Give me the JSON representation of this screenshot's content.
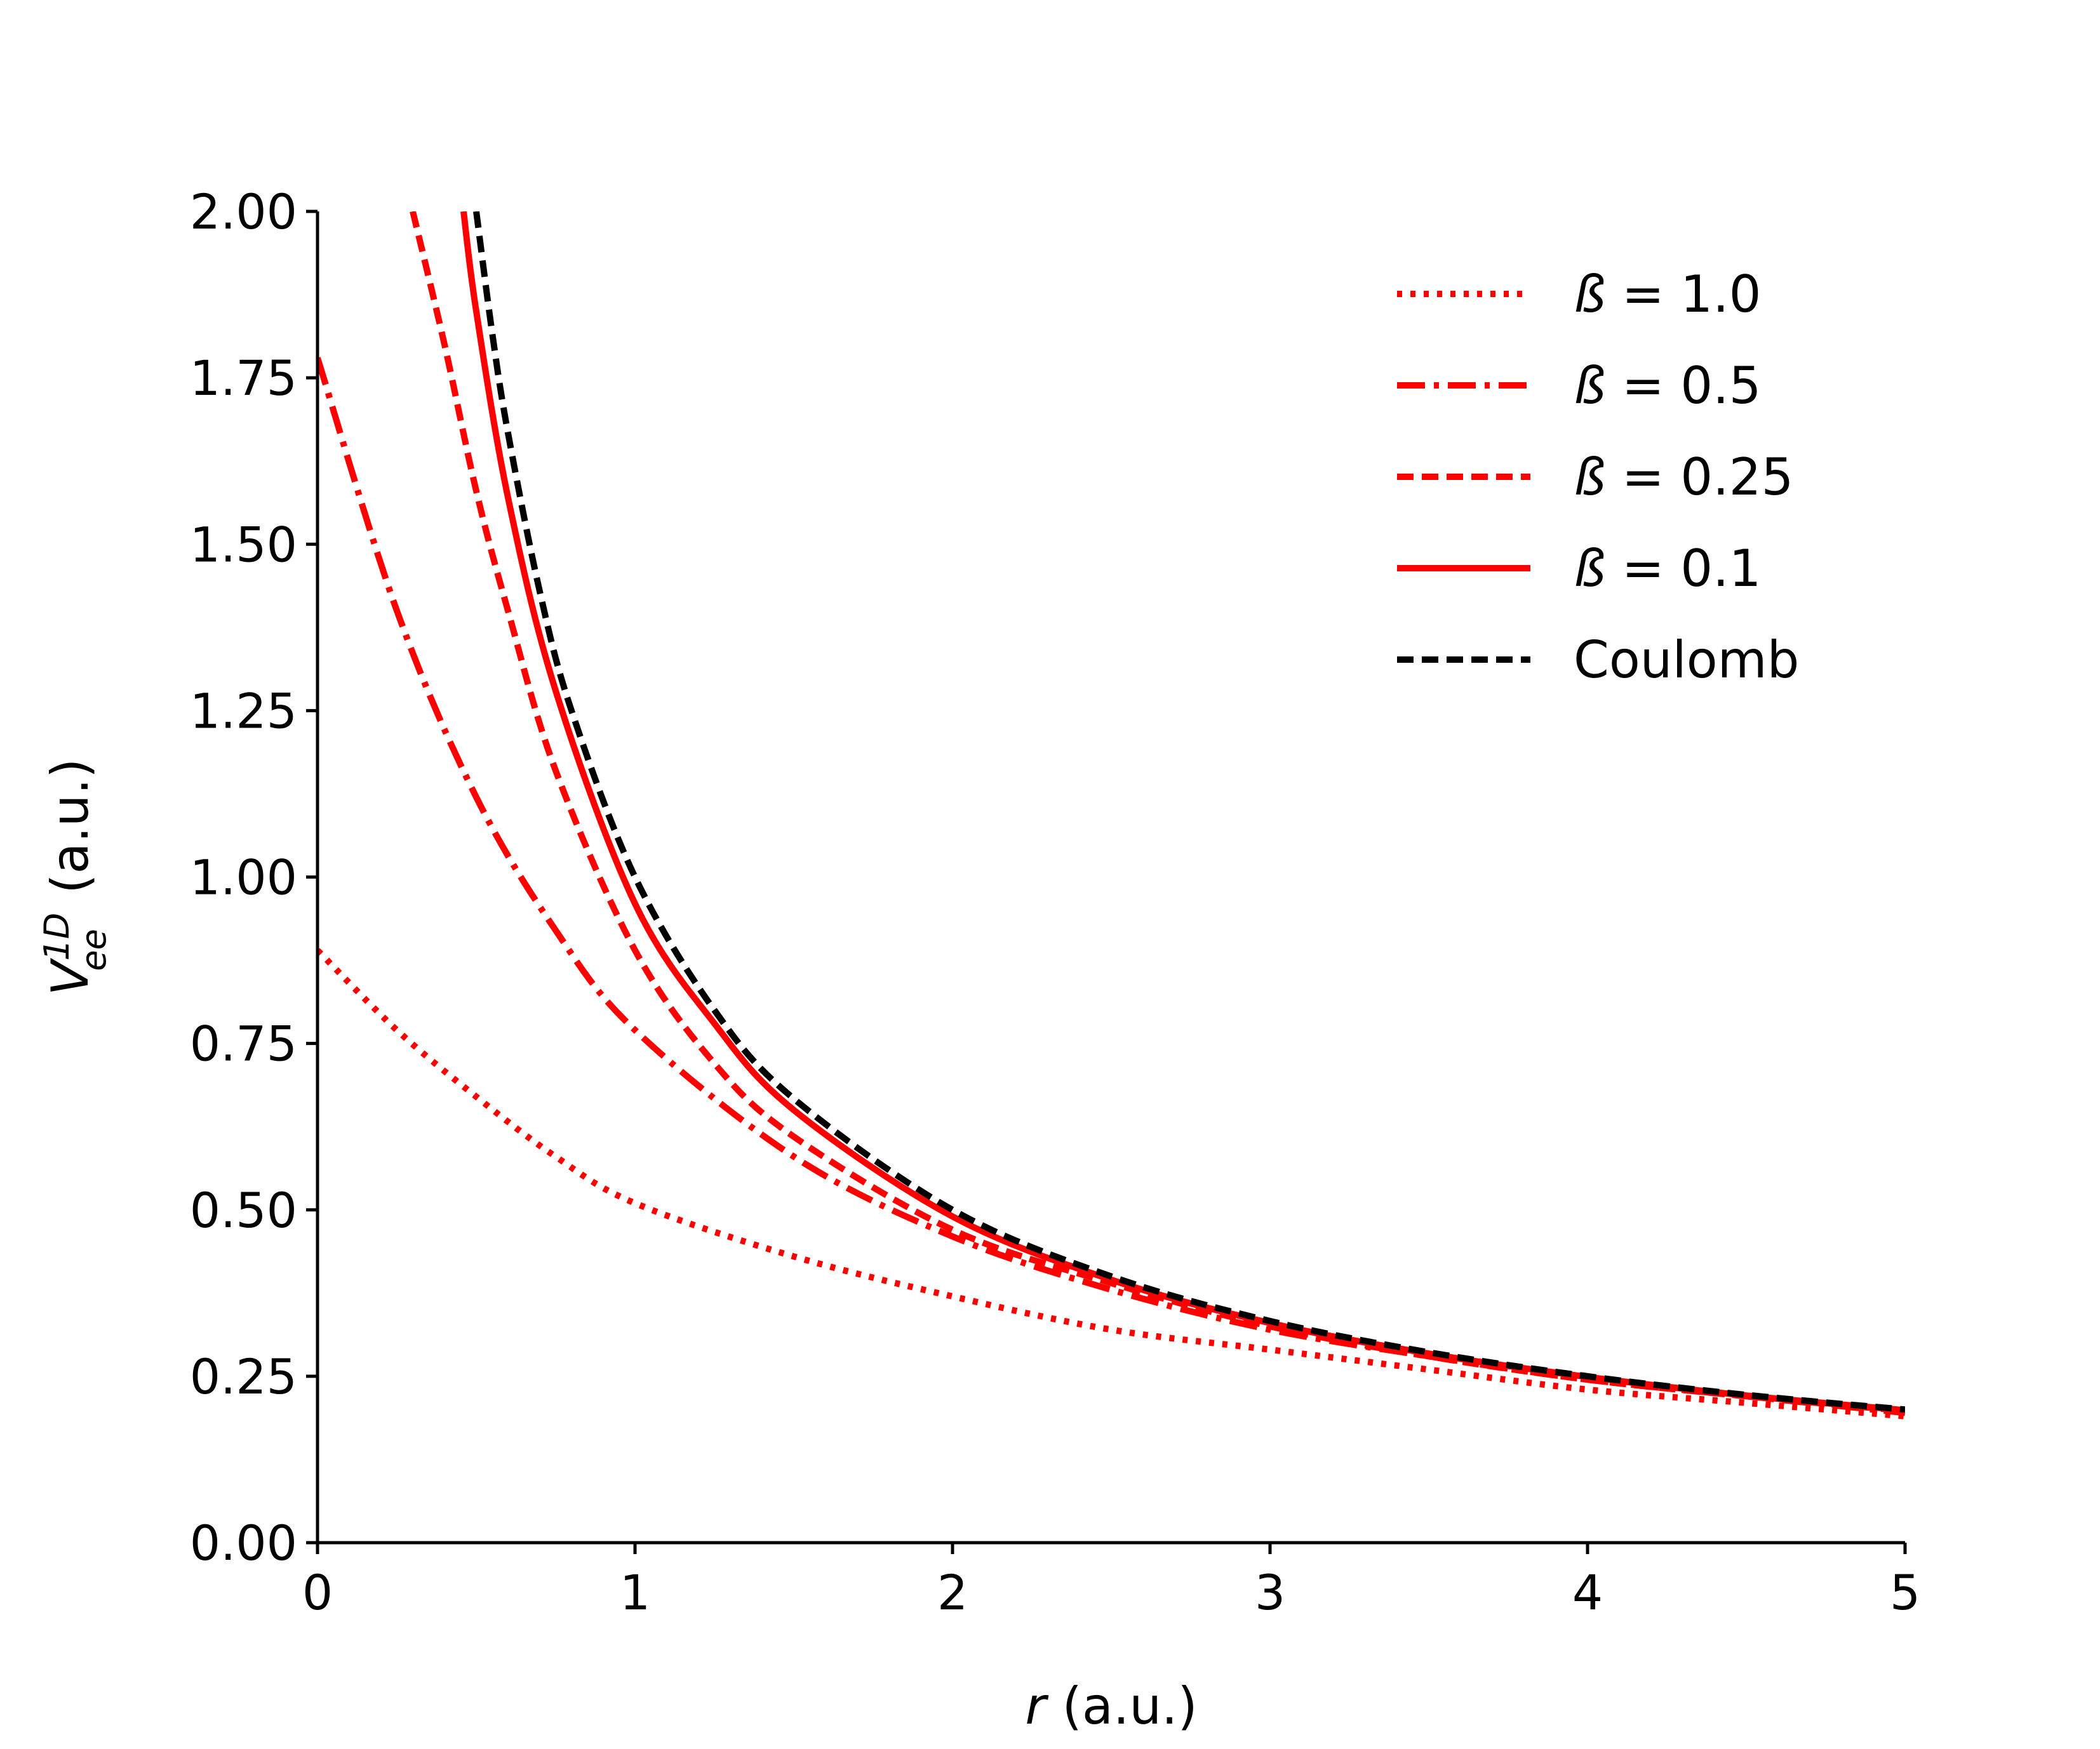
{
  "chart_data": {
    "type": "line",
    "xlabel": {
      "var": "r",
      "unit": "(a.u.)"
    },
    "ylabel": {
      "var": "V",
      "sup": "1D",
      "sub": "ee",
      "unit": "(a.u.)"
    },
    "xlim": [
      0,
      5
    ],
    "ylim": [
      0,
      2
    ],
    "xticks": [
      0,
      1,
      2,
      3,
      4,
      5
    ],
    "xtick_labels": [
      "0",
      "1",
      "2",
      "3",
      "4",
      "5"
    ],
    "yticks": [
      0,
      0.25,
      0.5,
      0.75,
      1.0,
      1.25,
      1.5,
      1.75,
      2.0
    ],
    "ytick_labels": [
      "0.00",
      "0.25",
      "0.50",
      "0.75",
      "1.00",
      "1.25",
      "1.50",
      "1.75",
      "2.00"
    ],
    "grid": false,
    "legend_position": "top-right",
    "series": [
      {
        "name": "ß = 1.0",
        "legend_symbol": "ß",
        "legend_value": "1.0",
        "color": "#ff0000",
        "style": "dotted",
        "x": [
          0,
          0.25,
          0.5,
          0.75,
          1.0,
          1.5,
          2.0,
          2.5,
          3.0,
          3.5,
          4.0,
          4.5,
          5.0
        ],
        "y": [
          0.89,
          0.77,
          0.67,
          0.58,
          0.51,
          0.43,
          0.37,
          0.32,
          0.29,
          0.26,
          0.23,
          0.21,
          0.19
        ]
      },
      {
        "name": "ß = 0.5",
        "legend_symbol": "ß",
        "legend_value": "0.5",
        "color": "#ff0000",
        "style": "dashdot",
        "x": [
          0,
          0.25,
          0.5,
          0.75,
          1.0,
          1.5,
          2.0,
          2.5,
          3.0,
          3.5,
          4.0,
          4.5,
          5.0
        ],
        "y": [
          1.78,
          1.4,
          1.12,
          0.92,
          0.77,
          0.58,
          0.46,
          0.38,
          0.32,
          0.28,
          0.245,
          0.22,
          0.195
        ]
      },
      {
        "name": "ß = 0.25",
        "legend_symbol": "ß",
        "legend_value": "0.25",
        "color": "#ff0000",
        "style": "dashed",
        "x": [
          0.3,
          0.4,
          0.5,
          0.6,
          0.75,
          1.0,
          1.25,
          1.5,
          2.0,
          2.5,
          3.0,
          3.5,
          4.0,
          4.5,
          5.0
        ],
        "y": [
          2.0,
          1.8,
          1.58,
          1.4,
          1.16,
          0.89,
          0.72,
          0.61,
          0.47,
          0.39,
          0.325,
          0.28,
          0.245,
          0.22,
          0.198
        ]
      },
      {
        "name": "ß = 0.1",
        "legend_symbol": "ß",
        "legend_value": "0.1",
        "color": "#ff0000",
        "style": "solid",
        "x": [
          0.46,
          0.5,
          0.6,
          0.75,
          1.0,
          1.25,
          1.5,
          2.0,
          2.5,
          3.0,
          3.5,
          4.0,
          4.5,
          5.0
        ],
        "y": [
          2.0,
          1.85,
          1.57,
          1.28,
          0.96,
          0.78,
          0.65,
          0.49,
          0.395,
          0.33,
          0.284,
          0.249,
          0.221,
          0.199
        ]
      },
      {
        "name": "Coulomb",
        "color": "#000000",
        "style": "dashed",
        "x": [
          0.5,
          0.55,
          0.6,
          0.7,
          0.8,
          1.0,
          1.25,
          1.5,
          2.0,
          2.5,
          3.0,
          3.5,
          4.0,
          4.5,
          5.0
        ],
        "y": [
          2.0,
          1.818,
          1.667,
          1.429,
          1.25,
          1.0,
          0.8,
          0.667,
          0.5,
          0.4,
          0.333,
          0.286,
          0.25,
          0.222,
          0.2
        ]
      }
    ]
  }
}
